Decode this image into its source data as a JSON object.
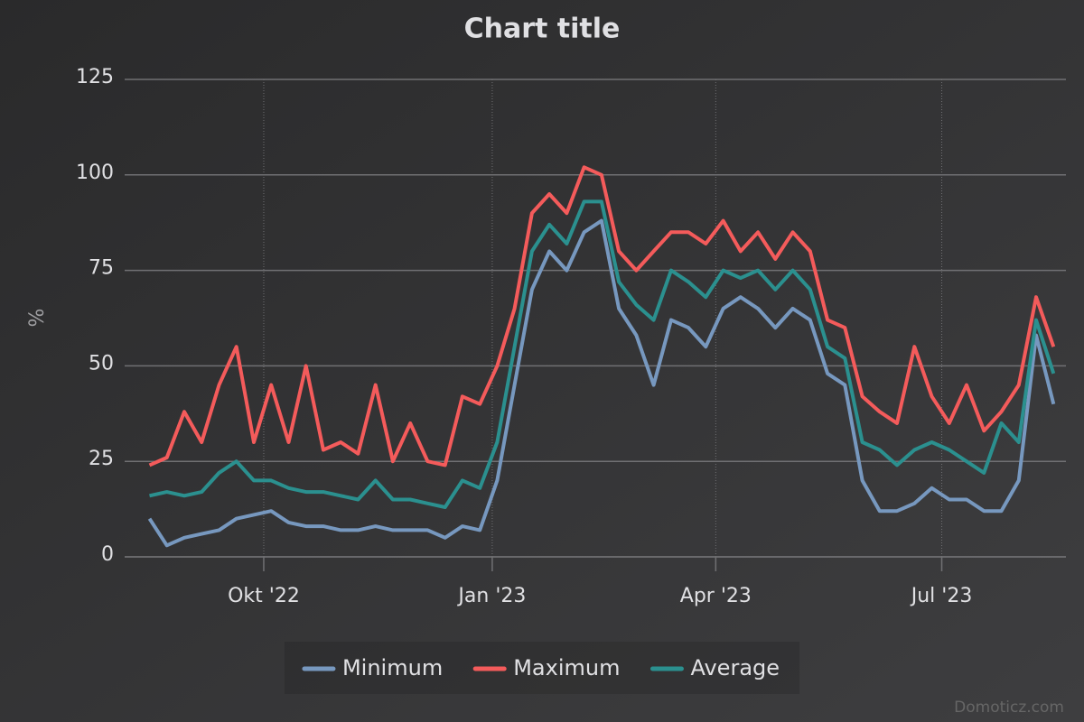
{
  "chart_data": {
    "type": "line",
    "title": "Chart title",
    "y_axis_title": "%",
    "credits": "Domoticz.com",
    "x": [
      "2022-08-16",
      "2022-08-23",
      "2022-08-30",
      "2022-09-06",
      "2022-09-13",
      "2022-09-20",
      "2022-09-27",
      "2022-10-04",
      "2022-10-11",
      "2022-10-18",
      "2022-10-25",
      "2022-11-01",
      "2022-11-08",
      "2022-11-15",
      "2022-11-22",
      "2022-11-29",
      "2022-12-06",
      "2022-12-13",
      "2022-12-20",
      "2022-12-27",
      "2023-01-03",
      "2023-01-10",
      "2023-01-17",
      "2023-01-24",
      "2023-01-31",
      "2023-02-07",
      "2023-02-14",
      "2023-02-21",
      "2023-02-28",
      "2023-03-07",
      "2023-03-14",
      "2023-03-21",
      "2023-03-28",
      "2023-04-04",
      "2023-04-11",
      "2023-04-18",
      "2023-04-25",
      "2023-05-02",
      "2023-05-09",
      "2023-05-16",
      "2023-05-23",
      "2023-05-30",
      "2023-06-06",
      "2023-06-13",
      "2023-06-20",
      "2023-06-27",
      "2023-07-04",
      "2023-07-11",
      "2023-07-18",
      "2023-07-25",
      "2023-08-01",
      "2023-08-08",
      "2023-08-15"
    ],
    "series": [
      {
        "name": "Minimum",
        "color": "#7798bf",
        "values": [
          10,
          3,
          5,
          6,
          7,
          10,
          11,
          12,
          9,
          8,
          8,
          7,
          7,
          8,
          7,
          7,
          7,
          5,
          8,
          7,
          20,
          45,
          70,
          80,
          75,
          85,
          88,
          65,
          58,
          45,
          62,
          60,
          55,
          65,
          68,
          65,
          60,
          65,
          62,
          48,
          45,
          20,
          12,
          12,
          14,
          18,
          15,
          15,
          12,
          12,
          20,
          58,
          40
        ]
      },
      {
        "name": "Maximum",
        "color": "#f45b5b",
        "values": [
          24,
          26,
          38,
          30,
          45,
          55,
          30,
          45,
          30,
          50,
          28,
          30,
          27,
          45,
          25,
          35,
          25,
          24,
          42,
          40,
          50,
          65,
          90,
          95,
          90,
          102,
          100,
          80,
          75,
          80,
          85,
          85,
          82,
          88,
          80,
          85,
          78,
          85,
          80,
          62,
          60,
          42,
          38,
          35,
          55,
          42,
          35,
          45,
          33,
          38,
          45,
          68,
          55
        ]
      },
      {
        "name": "Average",
        "color": "#2b908f",
        "values": [
          16,
          17,
          16,
          17,
          22,
          25,
          20,
          20,
          18,
          17,
          17,
          16,
          15,
          20,
          15,
          15,
          14,
          13,
          20,
          18,
          30,
          55,
          80,
          87,
          82,
          93,
          93,
          72,
          66,
          62,
          75,
          72,
          68,
          75,
          73,
          75,
          70,
          75,
          70,
          55,
          52,
          30,
          28,
          24,
          28,
          30,
          28,
          25,
          22,
          35,
          30,
          62,
          48
        ]
      }
    ],
    "xlim": [
      "2022-08-06",
      "2023-08-20"
    ],
    "xticks": [
      {
        "value": "2022-10-01",
        "label": "Okt '22"
      },
      {
        "value": "2023-01-01",
        "label": "Jan '23"
      },
      {
        "value": "2023-04-01",
        "label": "Apr '23"
      },
      {
        "value": "2023-07-01",
        "label": "Jul '23"
      }
    ],
    "ylim": [
      0,
      125
    ],
    "yticks": [
      0,
      25,
      50,
      75,
      100,
      125
    ],
    "grid": true,
    "legend": "bottom"
  }
}
